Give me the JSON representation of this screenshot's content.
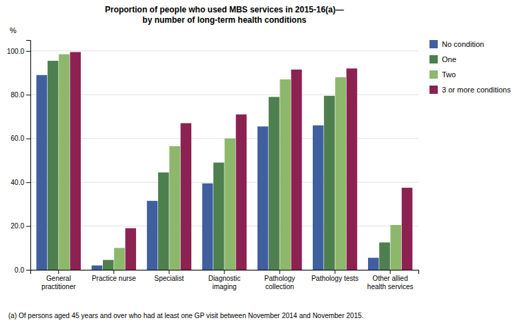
{
  "chart_data": {
    "type": "bar",
    "title": "Proportion of people who used MBS services in 2015-16(a)—\nby number of long-term health conditions",
    "ylabel": "%",
    "footnote": "(a) Of persons aged 45 years and over who had at least one GP visit between November 2014 and November 2015.",
    "categories": [
      "General\npractitioner",
      "Practice nurse",
      "Specialist",
      "Diagnostic\nimaging",
      "Pathology\ncollection",
      "Pathology tests",
      "Other allied\nhealth services"
    ],
    "series": [
      {
        "name": "No condition",
        "color": "#3F5F9F",
        "values": [
          89.0,
          2.0,
          31.5,
          39.5,
          65.5,
          66.0,
          5.5
        ]
      },
      {
        "name": "One",
        "color": "#4E7F4E",
        "values": [
          95.5,
          4.5,
          44.5,
          49.0,
          79.0,
          79.5,
          12.5
        ]
      },
      {
        "name": "Two",
        "color": "#8DB86B",
        "values": [
          98.5,
          10.0,
          56.5,
          60.0,
          87.0,
          88.0,
          20.5
        ]
      },
      {
        "name": "3 or more conditions",
        "color": "#8B2252",
        "values": [
          99.5,
          19.0,
          67.0,
          71.0,
          91.5,
          92.0,
          37.5
        ]
      }
    ],
    "ylim": [
      0,
      105
    ],
    "yticks": [
      {
        "value": 0,
        "label": "0.0"
      },
      {
        "value": 20,
        "label": "20.0"
      },
      {
        "value": 40,
        "label": "40.0"
      },
      {
        "value": 60,
        "label": "60.0"
      },
      {
        "value": 80,
        "label": "80.0"
      },
      {
        "value": 100,
        "label": "100.0"
      }
    ],
    "grid": true,
    "legend": "right"
  }
}
